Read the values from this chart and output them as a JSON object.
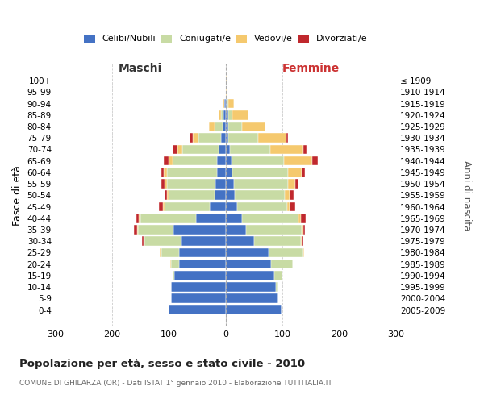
{
  "age_groups": [
    "100+",
    "95-99",
    "90-94",
    "85-89",
    "80-84",
    "75-79",
    "70-74",
    "65-69",
    "60-64",
    "55-59",
    "50-54",
    "45-49",
    "40-44",
    "35-39",
    "30-34",
    "25-29",
    "20-24",
    "15-19",
    "10-14",
    "5-9",
    "0-4"
  ],
  "year_labels": [
    "≤ 1909",
    "1910-1914",
    "1915-1919",
    "1920-1924",
    "1925-1929",
    "1930-1934",
    "1935-1939",
    "1940-1944",
    "1945-1949",
    "1950-1954",
    "1955-1959",
    "1960-1964",
    "1965-1969",
    "1970-1974",
    "1975-1979",
    "1980-1984",
    "1985-1989",
    "1990-1994",
    "1995-1999",
    "2000-2004",
    "2005-2009"
  ],
  "colors": {
    "celibi": "#4472C4",
    "coniugati": "#c8dba4",
    "vedovi": "#f5c96e",
    "divorziati": "#c0282d"
  },
  "male_celibi": [
    0,
    0,
    2,
    4,
    5,
    8,
    12,
    16,
    16,
    18,
    20,
    28,
    52,
    92,
    78,
    82,
    82,
    90,
    96,
    97,
    100
  ],
  "male_coniugati": [
    0,
    0,
    1,
    4,
    14,
    40,
    65,
    78,
    88,
    86,
    80,
    80,
    98,
    62,
    65,
    32,
    14,
    4,
    0,
    0,
    0
  ],
  "male_vedovi": [
    0,
    0,
    2,
    5,
    10,
    10,
    8,
    7,
    5,
    4,
    3,
    2,
    3,
    2,
    2,
    2,
    2,
    0,
    0,
    0,
    0
  ],
  "male_divorziati": [
    0,
    0,
    0,
    0,
    0,
    5,
    8,
    8,
    5,
    5,
    5,
    8,
    5,
    5,
    2,
    0,
    0,
    0,
    0,
    0,
    0
  ],
  "fem_nubili": [
    0,
    0,
    2,
    4,
    4,
    5,
    7,
    10,
    12,
    14,
    16,
    20,
    28,
    36,
    50,
    76,
    80,
    86,
    88,
    92,
    98
  ],
  "fem_coniugate": [
    0,
    0,
    2,
    8,
    24,
    52,
    72,
    92,
    98,
    96,
    88,
    88,
    100,
    98,
    82,
    60,
    38,
    14,
    5,
    0,
    0
  ],
  "fem_vedove": [
    1,
    2,
    10,
    28,
    42,
    50,
    58,
    50,
    24,
    12,
    8,
    5,
    5,
    3,
    2,
    2,
    0,
    0,
    0,
    0,
    0
  ],
  "fem_divorziate": [
    0,
    0,
    0,
    0,
    0,
    2,
    5,
    10,
    6,
    6,
    8,
    10,
    8,
    3,
    2,
    0,
    0,
    0,
    0,
    0,
    0
  ],
  "xlim": 300,
  "title": "Popolazione per età, sesso e stato civile - 2010",
  "subtitle": "COMUNE DI GHILARZA (OR) - Dati ISTAT 1° gennaio 2010 - Elaborazione TUTTITALIA.IT",
  "ylabel_left": "Fasce di età",
  "ylabel_right": "Anni di nascita",
  "label_maschi": "Maschi",
  "label_femmine": "Femmine",
  "legend_labels": [
    "Celibi/Nubili",
    "Coniugati/e",
    "Vedovi/e",
    "Divorziati/e"
  ]
}
